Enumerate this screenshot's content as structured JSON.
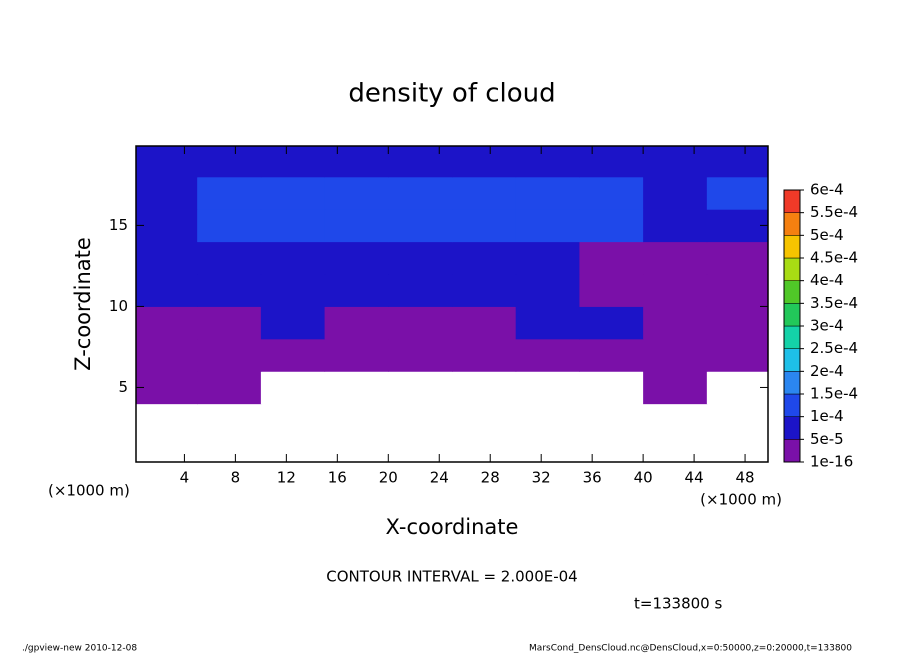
{
  "chart_data": {
    "type": "contour",
    "title": "density of cloud",
    "xlabel": "X-coordinate",
    "ylabel": "Z-coordinate",
    "xlabel_units": "(×1000 m)",
    "ylabel_units": "(×1000 m)",
    "annotation": "CONTOUR INTERVAL = 2.000E-04",
    "time_label": "t=133800 s",
    "footer_left": "./gpview-new  2010-12-08",
    "footer_right": "MarsCond_DensCloud.nc@DensCloud,x=0:50000,z=0:20000,t=133800",
    "xlim": [
      0.2,
      49.8
    ],
    "ylim": [
      0.4,
      19.9
    ],
    "xticks": [
      4,
      8,
      12,
      16,
      20,
      24,
      28,
      32,
      36,
      40,
      44,
      48
    ],
    "yticks": [
      5,
      10,
      15
    ],
    "x": [
      2.5,
      7.5,
      12.5,
      17.5,
      22.5,
      27.5,
      32.5,
      37.5,
      42.5,
      47.5
    ],
    "y": [
      1,
      3,
      5,
      7,
      9,
      11,
      13,
      15,
      17,
      19
    ],
    "z": [
      [
        0,
        0,
        0,
        0,
        0,
        0,
        0,
        0,
        0,
        0
      ],
      [
        0,
        0,
        0,
        0,
        0,
        0,
        0,
        0,
        0,
        0
      ],
      [
        2e-05,
        2e-05,
        0,
        0,
        0,
        0,
        0,
        0,
        2e-05,
        0
      ],
      [
        3e-05,
        3e-05,
        4e-05,
        3e-05,
        3e-05,
        3e-05,
        3e-05,
        2e-05,
        3e-05,
        2e-05
      ],
      [
        3e-05,
        4e-05,
        5e-05,
        3e-05,
        3e-05,
        3e-05,
        5e-05,
        6e-05,
        4e-05,
        3e-05
      ],
      [
        6e-05,
        6e-05,
        7e-05,
        6e-05,
        5e-05,
        6e-05,
        6e-05,
        4e-05,
        3e-05,
        3e-05
      ],
      [
        8e-05,
        8e-05,
        9e-05,
        9e-05,
        9e-05,
        8e-05,
        6e-05,
        3e-05,
        3e-05,
        4e-05
      ],
      [
        9e-05,
        0.00011,
        0.00013,
        0.00013,
        0.00013,
        0.00013,
        0.00012,
        0.0001,
        8e-05,
        9e-05
      ],
      [
        9e-05,
        0.0001,
        0.00012,
        0.00013,
        0.00013,
        0.00013,
        0.00012,
        0.0001,
        9e-05,
        0.0001
      ],
      [
        7e-05,
        6e-05,
        8e-05,
        8e-05,
        9e-05,
        9e-05,
        8e-05,
        7e-05,
        7e-05,
        8e-05
      ]
    ],
    "levels": [
      {
        "value": 1e-16,
        "label": "1e-16"
      },
      {
        "value": 5e-05,
        "label": "5e-5"
      },
      {
        "value": 0.0001,
        "label": "1e-4"
      },
      {
        "value": 0.00015,
        "label": "1.5e-4"
      },
      {
        "value": 0.0002,
        "label": "2e-4"
      },
      {
        "value": 0.00025,
        "label": "2.5e-4"
      },
      {
        "value": 0.0003,
        "label": "3e-4"
      },
      {
        "value": 0.00035,
        "label": "3.5e-4"
      },
      {
        "value": 0.0004,
        "label": "4e-4"
      },
      {
        "value": 0.00045,
        "label": "4.5e-4"
      },
      {
        "value": 0.0005,
        "label": "5e-4"
      },
      {
        "value": 0.00055,
        "label": "5.5e-4"
      },
      {
        "value": 0.0006,
        "label": "6e-4"
      }
    ],
    "colors": [
      "#7a10a8",
      "#1c14c8",
      "#1f48ea",
      "#2b86f0",
      "#1ec0e8",
      "#14d2a8",
      "#22c85a",
      "#50c828",
      "#a8dc14",
      "#f6c400",
      "#f58010",
      "#f03a28",
      "#f48c8c"
    ]
  }
}
